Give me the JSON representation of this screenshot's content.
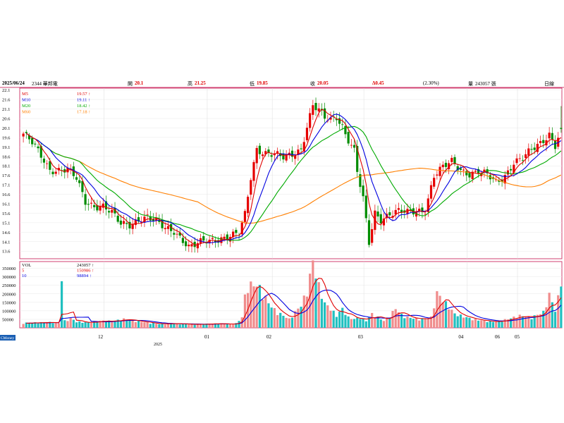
{
  "header": {
    "date": "2025/06/24",
    "stock": "2344 華邦電",
    "open_label": "開",
    "open_value": "20.1",
    "high_label": "高",
    "high_value": "21.25",
    "low_label": "低",
    "low_value": "19.85",
    "close_label": "收",
    "close_value": "20.05",
    "change_value": "Δ0.45",
    "change_pct": "(2.30%)",
    "volume_label": "量",
    "volume_value": "243057 張",
    "period": "日線"
  },
  "colors": {
    "up": "#e60000",
    "down": "#008c00",
    "ma5": "#e00000",
    "ma10": "#0000e0",
    "ma20": "#00aa00",
    "ma60": "#ff7f00",
    "vol_up": "#f08c8c",
    "vol_down": "#20c0c0"
  },
  "watermark": "CMoney",
  "chart_data": [
    {
      "type": "candlestick",
      "title": "",
      "ylim": [
        13.2,
        22.2
      ],
      "y_ticks": [
        "22.1",
        "21.6",
        "21.1",
        "20.6",
        "20.1",
        "19.6",
        "19.1",
        "18.6",
        "18.1",
        "17.6",
        "17.1",
        "16.6",
        "16.1",
        "15.6",
        "15.1",
        "14.6",
        "14.1",
        "13.6"
      ],
      "legend": [
        {
          "name": "M5",
          "value": "19.57 ↑",
          "color": "#e00000"
        },
        {
          "name": "M10",
          "value": "19.11 ↑",
          "color": "#0000e0"
        },
        {
          "name": "M20",
          "value": "18.42 ↑",
          "color": "#00aa00"
        },
        {
          "name": "M60",
          "value": "17.18 ↑",
          "color": "#ff7f00"
        }
      ],
      "x_labels": [
        "12",
        "01",
        "02",
        "03",
        "04",
        "05",
        "06"
      ],
      "x_year": "2025",
      "anchors_close": [
        [
          0,
          19.8
        ],
        [
          3,
          19.3
        ],
        [
          6,
          18.6
        ],
        [
          9,
          17.9
        ],
        [
          12,
          17.9
        ],
        [
          15,
          17.9
        ],
        [
          18,
          17.4
        ],
        [
          21,
          16.2
        ],
        [
          24,
          16.0
        ],
        [
          27,
          16.0
        ],
        [
          30,
          15.6
        ],
        [
          33,
          15.0
        ],
        [
          36,
          15.0
        ],
        [
          39,
          15.3
        ],
        [
          42,
          15.4
        ],
        [
          45,
          15.1
        ],
        [
          48,
          14.8
        ],
        [
          51,
          14.7
        ],
        [
          54,
          14.2
        ],
        [
          56,
          13.8
        ],
        [
          58,
          13.9
        ],
        [
          61,
          14.1
        ],
        [
          64,
          14.2
        ],
        [
          67,
          14.3
        ],
        [
          70,
          14.4
        ],
        [
          73,
          14.5
        ],
        [
          75,
          15.5
        ],
        [
          77,
          17.5
        ],
        [
          79,
          19.0
        ],
        [
          82,
          18.8
        ],
        [
          85,
          18.7
        ],
        [
          88,
          18.5
        ],
        [
          91,
          18.7
        ],
        [
          94,
          19.0
        ],
        [
          96,
          20.2
        ],
        [
          98,
          21.3
        ],
        [
          100,
          21.0
        ],
        [
          102,
          20.6
        ],
        [
          104,
          20.5
        ],
        [
          106,
          20.7
        ],
        [
          108,
          20.2
        ],
        [
          110,
          19.5
        ],
        [
          112,
          18.9
        ],
        [
          113,
          17.8
        ],
        [
          115,
          16.3
        ],
        [
          117,
          14.0
        ],
        [
          119,
          15.6
        ],
        [
          121,
          15.3
        ],
        [
          124,
          15.6
        ],
        [
          127,
          15.7
        ],
        [
          130,
          15.6
        ],
        [
          133,
          15.7
        ],
        [
          136,
          15.8
        ],
        [
          139,
          17.6
        ],
        [
          142,
          18.0
        ],
        [
          145,
          18.3
        ],
        [
          148,
          17.9
        ],
        [
          151,
          17.7
        ],
        [
          154,
          17.8
        ],
        [
          157,
          17.6
        ],
        [
          160,
          17.2
        ],
        [
          163,
          17.6
        ],
        [
          166,
          18.3
        ],
        [
          169,
          18.5
        ],
        [
          172,
          18.9
        ],
        [
          175,
          19.3
        ],
        [
          178,
          19.8
        ],
        [
          180,
          19.2
        ],
        [
          182,
          20.05
        ]
      ],
      "anchors_volume": [
        [
          0,
          28000
        ],
        [
          5,
          30000
        ],
        [
          10,
          32000
        ],
        [
          12,
          26000
        ],
        [
          13,
          290000
        ],
        [
          14,
          40000
        ],
        [
          15,
          45000
        ],
        [
          16,
          55000
        ],
        [
          18,
          35000
        ],
        [
          22,
          30000
        ],
        [
          26,
          40000
        ],
        [
          30,
          38000
        ],
        [
          34,
          50000
        ],
        [
          38,
          40000
        ],
        [
          42,
          30000
        ],
        [
          46,
          22000
        ],
        [
          50,
          25000
        ],
        [
          54,
          22000
        ],
        [
          58,
          20000
        ],
        [
          62,
          22000
        ],
        [
          66,
          25000
        ],
        [
          70,
          20000
        ],
        [
          72,
          25000
        ],
        [
          74,
          60000
        ],
        [
          75,
          180000
        ],
        [
          76,
          240000
        ],
        [
          78,
          250000
        ],
        [
          80,
          230000
        ],
        [
          82,
          170000
        ],
        [
          84,
          120000
        ],
        [
          86,
          90000
        ],
        [
          88,
          70000
        ],
        [
          90,
          50000
        ],
        [
          94,
          130000
        ],
        [
          96,
          210000
        ],
        [
          98,
          380000
        ],
        [
          100,
          240000
        ],
        [
          102,
          140000
        ],
        [
          104,
          110000
        ],
        [
          106,
          70000
        ],
        [
          108,
          110000
        ],
        [
          110,
          60000
        ],
        [
          112,
          50000
        ],
        [
          114,
          60000
        ],
        [
          116,
          40000
        ],
        [
          118,
          80000
        ],
        [
          120,
          60000
        ],
        [
          122,
          40000
        ],
        [
          124,
          70000
        ],
        [
          126,
          110000
        ],
        [
          128,
          75000
        ],
        [
          130,
          60000
        ],
        [
          134,
          50000
        ],
        [
          138,
          60000
        ],
        [
          140,
          200000
        ],
        [
          142,
          160000
        ],
        [
          144,
          120000
        ],
        [
          146,
          80000
        ],
        [
          148,
          70000
        ],
        [
          152,
          50000
        ],
        [
          156,
          40000
        ],
        [
          160,
          35000
        ],
        [
          164,
          50000
        ],
        [
          168,
          70000
        ],
        [
          172,
          60000
        ],
        [
          176,
          90000
        ],
        [
          178,
          190000
        ],
        [
          180,
          100000
        ],
        [
          182,
          243057
        ]
      ]
    },
    {
      "type": "bar",
      "title": "",
      "ylim": [
        0,
        390000
      ],
      "y_ticks": [
        "350000",
        "300000",
        "250000",
        "200000",
        "150000",
        "100000",
        "50000"
      ],
      "legend": [
        {
          "name": "VOL",
          "value": "243057 ↑",
          "color": "#000000"
        },
        {
          "name": "5",
          "value": "150986 ↑",
          "color": "#e00000"
        },
        {
          "name": "10",
          "value": "98894 ↑",
          "color": "#0000e0"
        }
      ]
    }
  ]
}
